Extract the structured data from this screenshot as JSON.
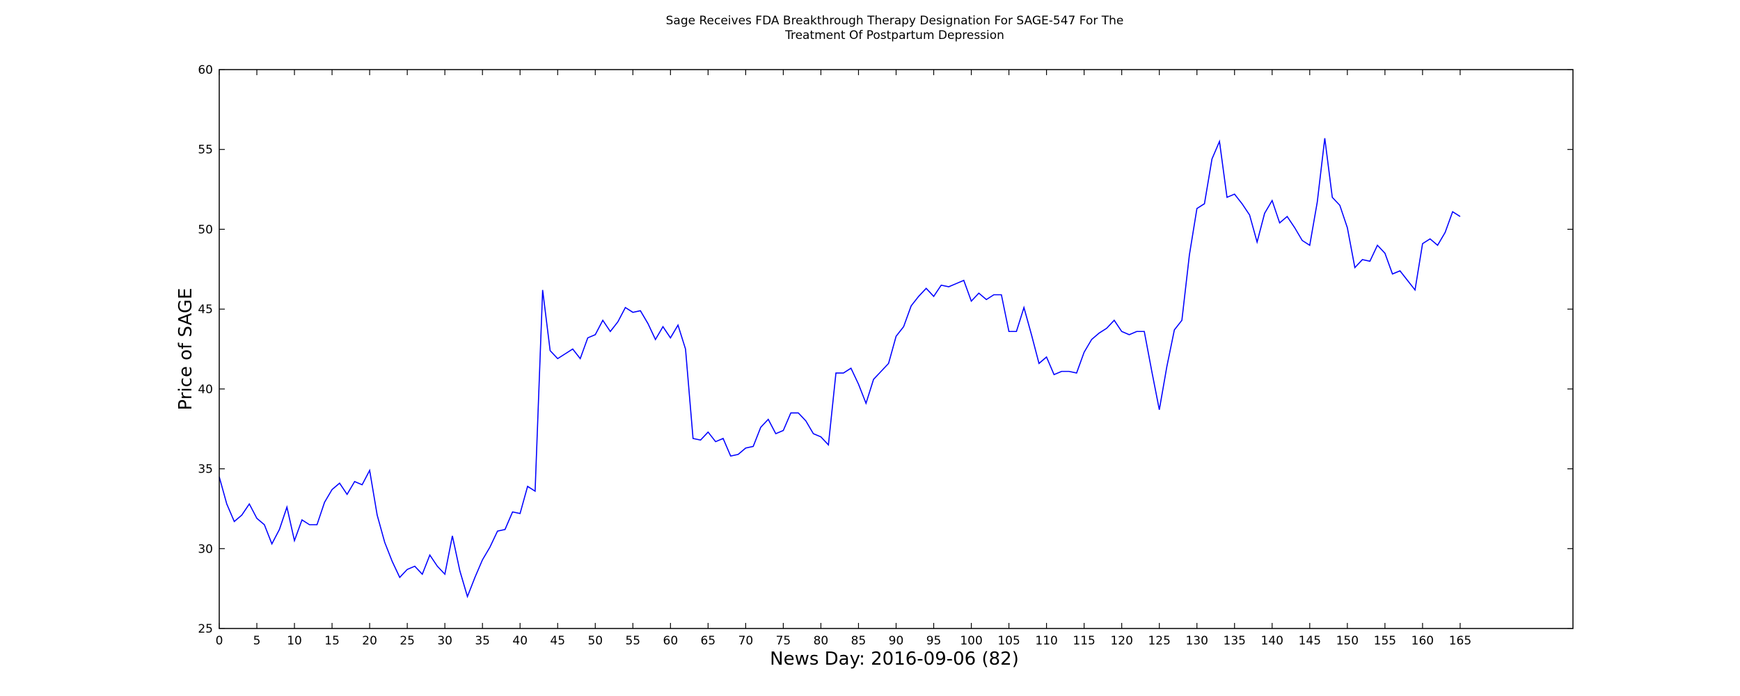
{
  "chart_data": {
    "type": "line",
    "title": "Sage Receives FDA Breakthrough Therapy Designation For SAGE-547 For The\nTreatment Of Postpartum Depression",
    "xlabel": "News Day: 2016-09-06 (82)",
    "ylabel": "Price of SAGE",
    "xlim": [
      0,
      180
    ],
    "ylim": [
      25,
      60
    ],
    "x_ticks": [
      0,
      5,
      10,
      15,
      20,
      25,
      30,
      35,
      40,
      45,
      50,
      55,
      60,
      65,
      70,
      75,
      80,
      85,
      90,
      95,
      100,
      105,
      110,
      115,
      120,
      125,
      130,
      135,
      140,
      145,
      150,
      155,
      160,
      165
    ],
    "y_ticks": [
      25,
      30,
      35,
      40,
      45,
      50,
      55,
      60
    ],
    "grid": false,
    "colors": {
      "line": "#0000ff",
      "axes": "#000000",
      "background": "#ffffff"
    },
    "series": [
      {
        "values": [
          34.5,
          32.8,
          31.7,
          32.1,
          32.8,
          31.9,
          31.5,
          30.3,
          31.2,
          32.6,
          30.5,
          31.8,
          31.5,
          31.5,
          32.9,
          33.7,
          34.1,
          33.4,
          34.2,
          34.0,
          34.9,
          32.1,
          30.4,
          29.2,
          28.2,
          28.7,
          28.9,
          28.4,
          29.6,
          28.9,
          28.4,
          30.8,
          28.6,
          27.0,
          28.2,
          29.3,
          30.1,
          31.1,
          31.2,
          32.3,
          32.2,
          33.9,
          33.6,
          46.2,
          42.4,
          41.9,
          42.2,
          42.5,
          41.9,
          43.2,
          43.4,
          44.3,
          43.6,
          44.2,
          45.1,
          44.8,
          44.9,
          44.1,
          43.1,
          43.9,
          43.2,
          44.0,
          42.5,
          36.9,
          36.8,
          37.3,
          36.7,
          36.9,
          35.8,
          35.9,
          36.3,
          36.4,
          37.6,
          38.1,
          37.2,
          37.4,
          38.5,
          38.5,
          38.0,
          37.2,
          37.0,
          36.5,
          41.0,
          41.0,
          41.3,
          40.3,
          39.1,
          40.6,
          41.1,
          41.6,
          43.3,
          43.9,
          45.2,
          45.8,
          46.3,
          45.8,
          46.5,
          46.4,
          46.6,
          46.8,
          45.5,
          46.0,
          45.6,
          45.9,
          45.9,
          43.6,
          43.6,
          45.1,
          43.4,
          41.6,
          42.0,
          40.9,
          41.1,
          41.1,
          41.0,
          42.3,
          43.1,
          43.5,
          43.8,
          44.3,
          43.6,
          43.4,
          43.6,
          43.6,
          41.1,
          38.7,
          41.4,
          43.7,
          44.3,
          48.4,
          51.3,
          51.6,
          54.4,
          55.5,
          52.0,
          52.2,
          51.6,
          50.9,
          49.2,
          51.0,
          51.8,
          50.4,
          50.8,
          50.1,
          49.3,
          49.0,
          51.7,
          55.7,
          52.0,
          51.5,
          50.1,
          47.6,
          48.1,
          48.0,
          49.0,
          48.5,
          47.2,
          47.4,
          46.8,
          46.2,
          49.1,
          49.4,
          49.0,
          49.8,
          51.1,
          50.8
        ]
      }
    ]
  }
}
